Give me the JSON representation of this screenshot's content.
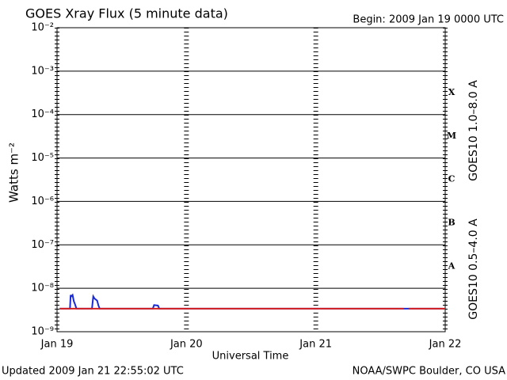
{
  "chart_data": {
    "type": "line",
    "log_scale": true,
    "grid": true,
    "title": "GOES Xray Flux (5 minute data)",
    "subtitle": "Begin:  2009 Jan 19 0000 UTC",
    "xlabel": "Universal Time",
    "ylabel": "Watts m⁻²",
    "footer_left": "Updated 2009 Jan 21 22:55:02 UTC",
    "footer_right": "NOAA/SWPC Boulder, CO USA",
    "xlim": [
      0,
      3
    ],
    "xticks": [
      {
        "value": 0,
        "label": "Jan 19"
      },
      {
        "value": 1,
        "label": "Jan 20"
      },
      {
        "value": 2,
        "label": "Jan 21"
      },
      {
        "value": 3,
        "label": "Jan 22"
      }
    ],
    "ylim": [
      1e-09,
      0.01
    ],
    "yticks": [
      {
        "value": 1e-09,
        "label": "10⁻⁹"
      },
      {
        "value": 1e-08,
        "label": "10⁻⁸"
      },
      {
        "value": 1e-07,
        "label": "10⁻⁷"
      },
      {
        "value": 1e-06,
        "label": "10⁻⁶"
      },
      {
        "value": 1e-05,
        "label": "10⁻⁵"
      },
      {
        "value": 0.0001,
        "label": "10⁻⁴"
      },
      {
        "value": 0.001,
        "label": "10⁻³"
      },
      {
        "value": 0.01,
        "label": "10⁻²"
      }
    ],
    "class_labels": [
      {
        "value": 3.2e-08,
        "label": "A"
      },
      {
        "value": 3.2e-07,
        "label": "B"
      },
      {
        "value": 3.2e-06,
        "label": "C"
      },
      {
        "value": 3.2e-05,
        "label": "M"
      },
      {
        "value": 0.00032,
        "label": "X"
      }
    ],
    "series": [
      {
        "name": "GOES10 0.5–4.0 A",
        "color": "#1a2bd6",
        "x": [
          0.02,
          0.1,
          0.105,
          0.11,
          0.12,
          0.13,
          0.14,
          0.15,
          0.27,
          0.28,
          0.29,
          0.31,
          0.32,
          0.33,
          0.74,
          0.75,
          0.78,
          0.79,
          2.98
        ],
        "values": [
          3.4e-09,
          3.4e-09,
          7e-09,
          6.5e-09,
          7e-09,
          5e-09,
          4.2e-09,
          3.4e-09,
          3.4e-09,
          6.5e-09,
          5.8e-09,
          5.2e-09,
          4e-09,
          3.4e-09,
          3.4e-09,
          4.1e-09,
          4e-09,
          3.4e-09,
          3.4e-09
        ]
      },
      {
        "name": "GOES10 1.0–8.0 A",
        "color": "#d42020",
        "x": [
          0.02,
          0.5,
          1.0,
          1.5,
          2.0,
          2.5,
          2.68,
          2.7,
          2.72,
          3.0
        ],
        "values": [
          3.4e-09,
          3.4e-09,
          3.4e-09,
          3.4e-09,
          3.4e-09,
          3.4e-09,
          3.4e-09,
          null,
          3.4e-09,
          3.4e-09
        ]
      }
    ]
  }
}
